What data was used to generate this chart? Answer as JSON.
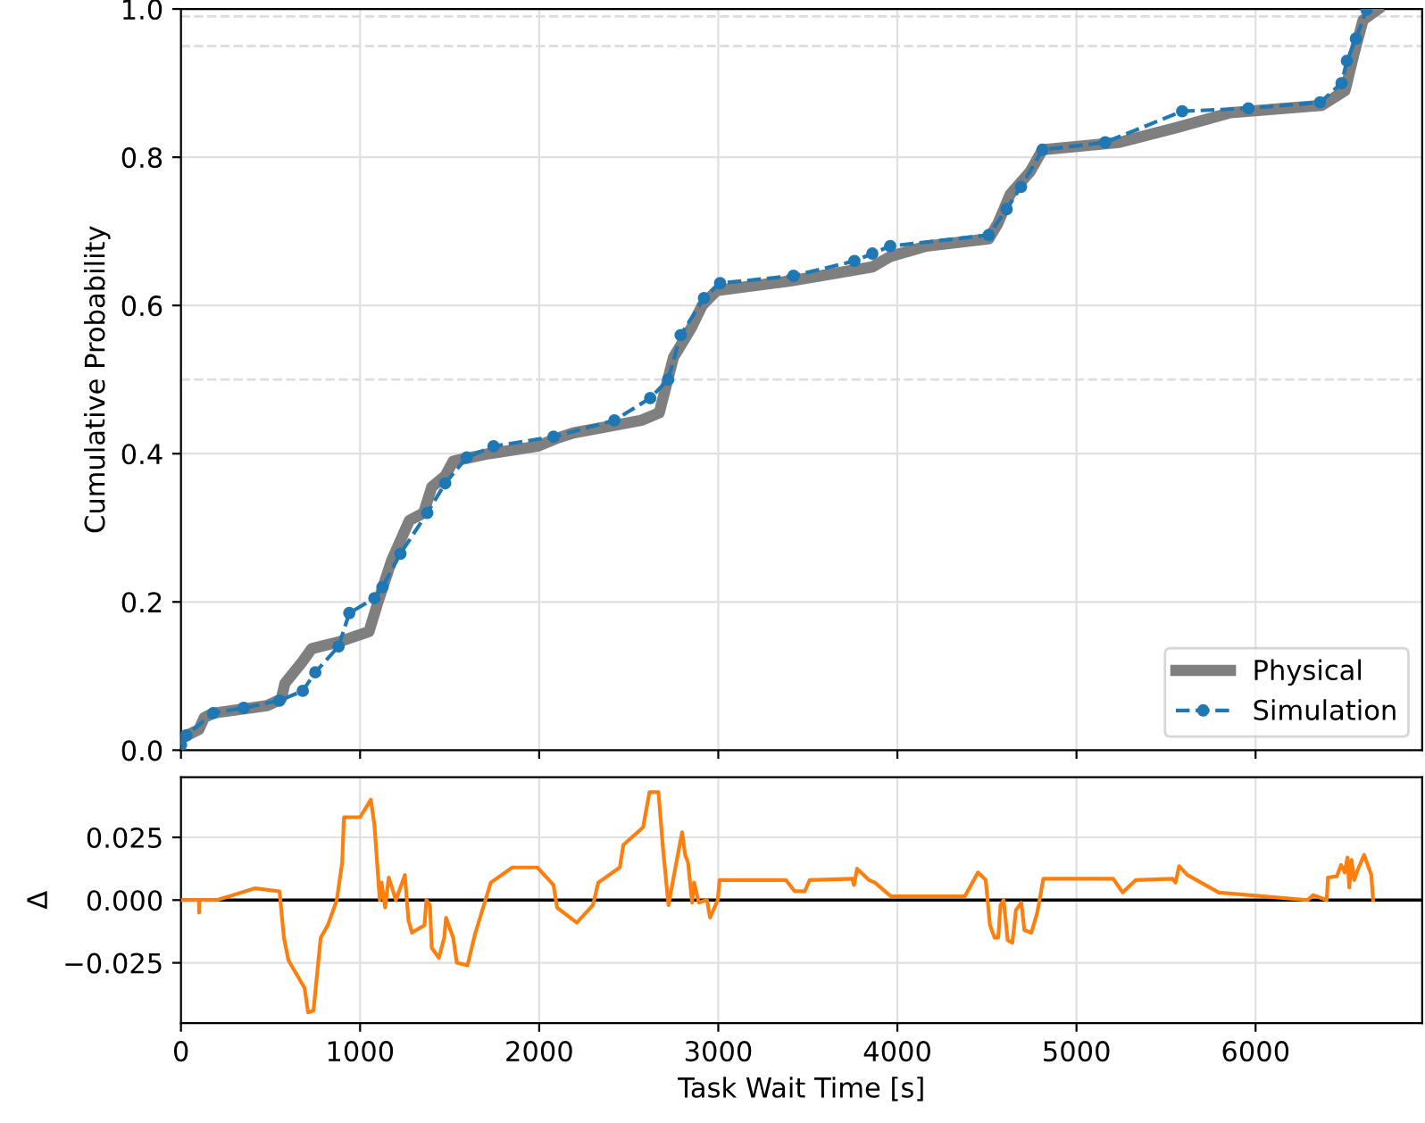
{
  "chart_data": [
    {
      "type": "line",
      "ylabel": "Cumulative Probability",
      "xlim": [
        0,
        6930
      ],
      "ylim": [
        0,
        1.0
      ],
      "xticks": [
        0,
        1000,
        2000,
        3000,
        4000,
        5000,
        6000
      ],
      "yticks": [
        {
          "value": 0,
          "label": "0.0"
        },
        0.2,
        0.4,
        0.6,
        0.8,
        {
          "value": 1.0,
          "label": "1.0"
        }
      ],
      "tick_labels": "y",
      "grid": true,
      "legend": "bottom right",
      "ref_lines": [
        {
          "axis": "y",
          "value": 0.5,
          "color": "#dddddd",
          "line_style": "dashed"
        },
        {
          "axis": "y",
          "value": 0.95,
          "color": "#dddddd",
          "line_style": "dashed"
        },
        {
          "axis": "y",
          "value": 0.99,
          "color": "#dddddd",
          "line_style": "dashed"
        }
      ],
      "series": [
        {
          "name": "Physical",
          "color": "#7f7f7f",
          "marker": "none",
          "line_style": "solid",
          "x": [
            0,
            100,
            130,
            180,
            480,
            560,
            580,
            680,
            730,
            880,
            1050,
            1100,
            1175,
            1275,
            1355,
            1400,
            1475,
            1520,
            1720,
            1990,
            2090,
            2190,
            2570,
            2670,
            2750,
            2850,
            2910,
            2990,
            3400,
            3570,
            3860,
            3960,
            4160,
            4510,
            4560,
            4630,
            4740,
            4810,
            5240,
            5560,
            5860,
            6370,
            6500,
            6550,
            6600,
            6680
          ],
          "values": [
            0.016,
            0.028,
            0.044,
            0.05,
            0.06,
            0.069,
            0.09,
            0.12,
            0.137,
            0.146,
            0.16,
            0.2,
            0.255,
            0.31,
            0.32,
            0.355,
            0.37,
            0.39,
            0.4,
            0.41,
            0.42,
            0.428,
            0.445,
            0.455,
            0.53,
            0.57,
            0.6,
            0.62,
            0.633,
            0.64,
            0.652,
            0.666,
            0.68,
            0.69,
            0.71,
            0.75,
            0.78,
            0.81,
            0.82,
            0.84,
            0.86,
            0.87,
            0.89,
            0.94,
            0.985,
            0.999
          ]
        },
        {
          "name": "Simulation",
          "color": "#1f77b4",
          "marker": "circle",
          "line_style": "dashed",
          "x": [
            0,
            30,
            180,
            350,
            550,
            680,
            750,
            880,
            940,
            1080,
            1125,
            1225,
            1375,
            1475,
            1595,
            1745,
            2080,
            2420,
            2620,
            2720,
            2790,
            2920,
            3010,
            3420,
            3760,
            3860,
            3960,
            4510,
            4610,
            4690,
            4810,
            5160,
            5590,
            5960,
            6360,
            6480,
            6510,
            6560,
            6620
          ],
          "values": [
            0.007,
            0.02,
            0.05,
            0.057,
            0.067,
            0.08,
            0.105,
            0.14,
            0.185,
            0.205,
            0.22,
            0.265,
            0.32,
            0.36,
            0.395,
            0.41,
            0.423,
            0.445,
            0.475,
            0.5,
            0.56,
            0.61,
            0.63,
            0.64,
            0.66,
            0.67,
            0.68,
            0.695,
            0.73,
            0.76,
            0.81,
            0.82,
            0.862,
            0.866,
            0.874,
            0.9,
            0.93,
            0.96,
            0.999
          ]
        }
      ]
    },
    {
      "type": "line",
      "xlabel": "Task Wait Time [s]",
      "ylabel": "Δ",
      "xlim": [
        0,
        6930
      ],
      "ylim": [
        -0.049,
        0.049
      ],
      "xticks": [
        0,
        1000,
        2000,
        3000,
        4000,
        5000,
        6000
      ],
      "yticks": [
        {
          "value": -0.025,
          "label": "−0.025"
        },
        {
          "value": 0,
          "label": "0.000"
        },
        {
          "value": 0.025,
          "label": "0.025"
        }
      ],
      "grid": true,
      "ref_lines": [
        {
          "axis": "y",
          "value": 0,
          "color": "#000000",
          "line_style": "solid"
        }
      ],
      "series": [
        {
          "color": "#ff7f0e",
          "marker": "none",
          "line_style": "solid",
          "x": [
            0,
            100,
            101,
            103,
            200,
            414,
            550,
            575,
            600,
            690,
            710,
            740,
            780,
            820,
            870,
            900,
            910,
            1000,
            1060,
            1080,
            1110,
            1120,
            1140,
            1160,
            1200,
            1250,
            1270,
            1290,
            1360,
            1370,
            1390,
            1400,
            1440,
            1470,
            1480,
            1520,
            1540,
            1600,
            1640,
            1730,
            1850,
            1990,
            2080,
            2100,
            2210,
            2300,
            2330,
            2450,
            2470,
            2580,
            2616,
            2666,
            2692,
            2722,
            2758,
            2798,
            2815,
            2831,
            2854,
            2865,
            2891,
            2937,
            2954,
            2997,
            3007,
            3377,
            3427,
            3483,
            3510,
            3748,
            3758,
            3775,
            3841,
            3874,
            3964,
            4377,
            4450,
            4493,
            4517,
            4543,
            4563,
            4576,
            4593,
            4616,
            4642,
            4662,
            4692,
            4709,
            4748,
            4781,
            4815,
            5205,
            5258,
            5331,
            5536,
            5553,
            5573,
            5619,
            5795,
            6291,
            6321,
            6397,
            6404,
            6454,
            6477,
            6497,
            6513,
            6523,
            6536,
            6550,
            6570,
            6606,
            6646,
            6656
          ],
          "values": [
            0,
            0,
            -0.005,
            0,
            0,
            0.0047,
            0.0035,
            -0.015,
            -0.024,
            -0.035,
            -0.0448,
            -0.044,
            -0.015,
            -0.01,
            0,
            0.015,
            0.033,
            0.033,
            0.04,
            0.03,
            0,
            0.007,
            -0.003,
            0.009,
            0,
            0.01,
            -0.008,
            -0.013,
            -0.01,
            0,
            -0.002,
            -0.019,
            -0.023,
            -0.015,
            -0.007,
            -0.015,
            -0.025,
            -0.026,
            -0.014,
            0.007,
            0.013,
            0.013,
            0.006,
            -0.003,
            -0.009,
            -0.002,
            0.007,
            0.013,
            0.022,
            0.029,
            0.043,
            0.043,
            0.02,
            -0.002,
            0.012,
            0.027,
            0.018,
            0.015,
            -0.001,
            0.007,
            -0.001,
            0,
            -0.007,
            0,
            0.008,
            0.008,
            0.0035,
            0.0035,
            0.008,
            0.0085,
            0.006,
            0.0125,
            0.008,
            0.007,
            0.0015,
            0.0015,
            0.011,
            0.008,
            -0.01,
            -0.015,
            -0.015,
            -0.002,
            0,
            -0.016,
            -0.017,
            -0.004,
            -0.001,
            -0.012,
            -0.013,
            -0.005,
            0.0085,
            0.0085,
            0.003,
            0.008,
            0.0085,
            0.007,
            0.0135,
            0.01,
            0.003,
            0,
            0.002,
            0,
            0.009,
            0.0095,
            0.014,
            0.011,
            0.017,
            0.005,
            0.016,
            0.008,
            0.012,
            0.018,
            0.01,
            0
          ]
        }
      ]
    }
  ]
}
